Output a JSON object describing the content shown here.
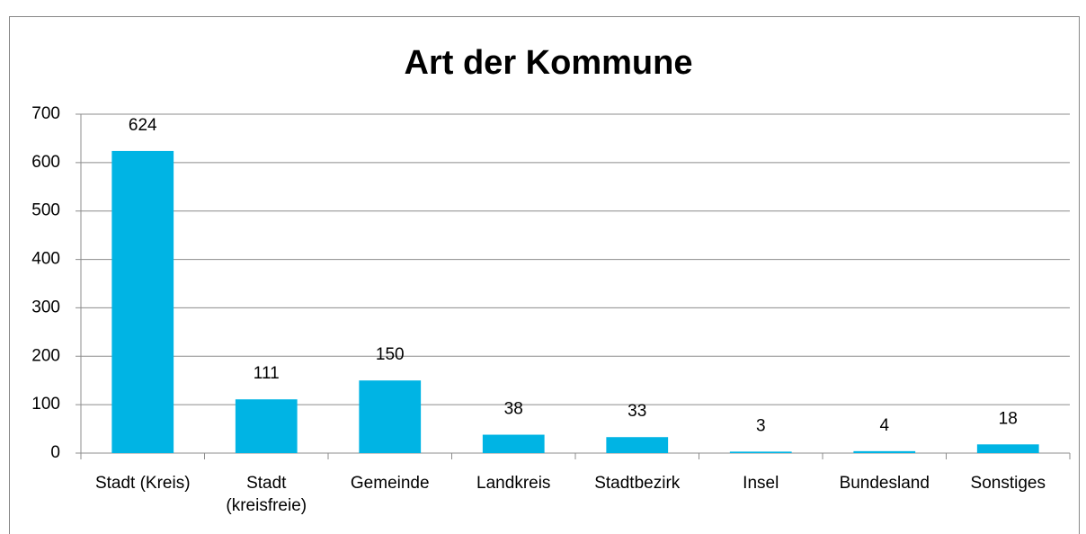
{
  "chart_data": {
    "type": "bar",
    "title": "Art der Kommune",
    "categories": [
      "Stadt (Kreis)",
      "Stadt (kreisfreie)",
      "Gemeinde",
      "Landkreis",
      "Stadtbezirk",
      "Insel",
      "Bundesland",
      "Sonstiges"
    ],
    "values": [
      624,
      111,
      150,
      38,
      33,
      3,
      4,
      18
    ],
    "color": "#00b4e4",
    "ylim": [
      0,
      700
    ],
    "yticks": [
      0,
      100,
      200,
      300,
      400,
      500,
      600,
      700
    ],
    "grid": true
  }
}
